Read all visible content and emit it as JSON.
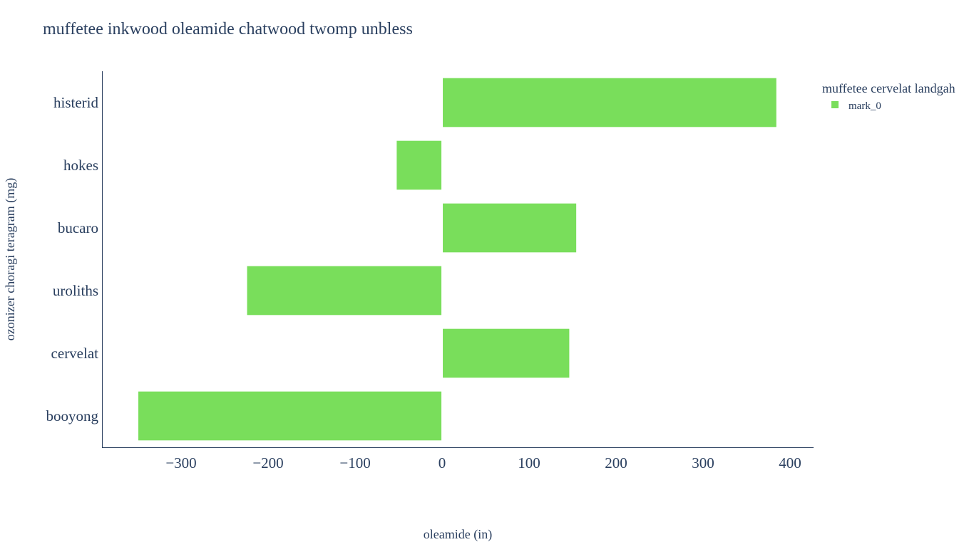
{
  "chart_data": {
    "type": "bar",
    "orientation": "horizontal",
    "title": "muffetee inkwood oleamide chatwood twomp unbless",
    "xlabel": "oleamide (in)",
    "ylabel": "ozonizer choragi teragram (mg)",
    "categories": [
      "histerid",
      "hokes",
      "bucaro",
      "uroliths",
      "cervelat",
      "booyong"
    ],
    "series": [
      {
        "name": "mark_0",
        "values": [
          385,
          -53,
          155,
          -225,
          147,
          -350
        ],
        "color": "#79de5b"
      }
    ],
    "xlim": [
      -391,
      427
    ],
    "xticks": [
      -300,
      -200,
      -100,
      0,
      100,
      200,
      300,
      400
    ],
    "xtick_labels": [
      "−300",
      "−200",
      "−100",
      "0",
      "100",
      "200",
      "300",
      "400"
    ],
    "grid": false,
    "legend": {
      "title": "muffetee cervelat landgah",
      "position": "top-right"
    }
  }
}
